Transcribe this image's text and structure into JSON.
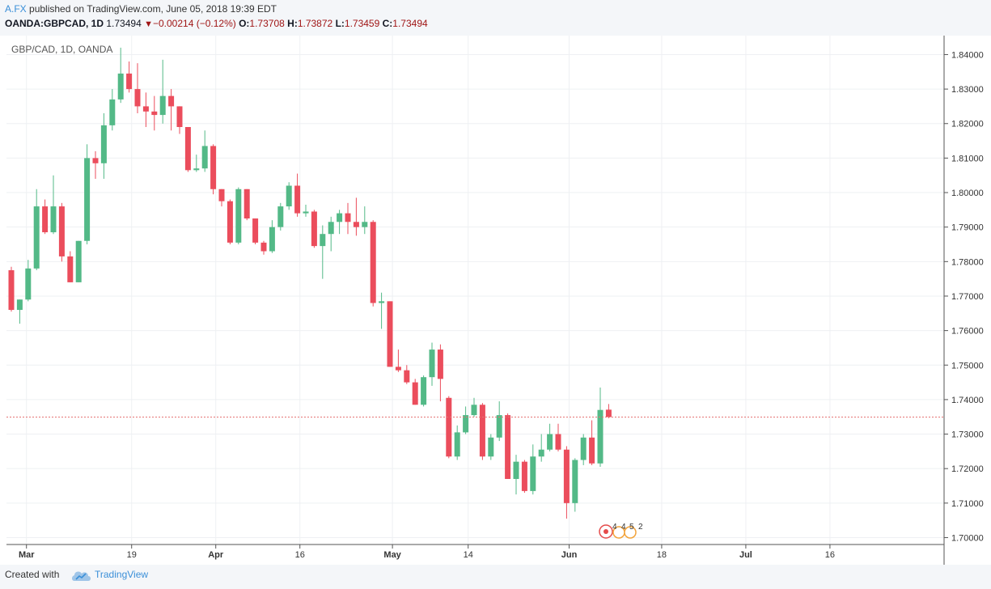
{
  "header": {
    "author": "A.FX",
    "published_text": "published on TradingView.com, June 05, 2018 19:39 EDT",
    "symbol": "OANDA:GBPCAD, 1D",
    "last": "1.73494",
    "change": "−0.00214 (−0.12%)",
    "o_label": "O:",
    "o_value": "1.73708",
    "h_label": "H:",
    "h_value": "1.73872",
    "l_label": "L:",
    "l_value": "1.73459",
    "c_label": "C:",
    "c_value": "1.73494"
  },
  "legend": "GBP/CAD, 1D, OANDA",
  "footer": {
    "created_with": "Created with",
    "brand": "TradingView"
  },
  "colors": {
    "up": "#53b987",
    "down": "#eb4d5c",
    "grid": "#eef0f3",
    "price_line": "#e57373",
    "axis": "#555555"
  },
  "events": {
    "labels": [
      "4",
      "4",
      "5",
      "2"
    ]
  },
  "chart_data": {
    "type": "candlestick",
    "title": "GBP/CAD, 1D, OANDA",
    "current_price": 1.73494,
    "ylim": [
      1.698,
      1.8455
    ],
    "y_ticks": [
      "1.84000",
      "1.83000",
      "1.82000",
      "1.81000",
      "1.80000",
      "1.79000",
      "1.78000",
      "1.77000",
      "1.76000",
      "1.75000",
      "1.74000",
      "1.73000",
      "1.72000",
      "1.71000",
      "1.70000"
    ],
    "x_ticks": [
      "Mar",
      "19",
      "Apr",
      "16",
      "May",
      "14",
      "Jun",
      "18",
      "Jul",
      "16"
    ],
    "x_tick_bars": [
      1.8,
      14.3,
      24.3,
      34.3,
      45.3,
      54.3,
      66.3,
      77.3,
      87.3,
      97.3
    ],
    "candles": [
      {
        "o": 1.7775,
        "h": 1.7785,
        "l": 1.7655,
        "c": 1.766
      },
      {
        "o": 1.766,
        "h": 1.769,
        "l": 1.762,
        "c": 1.769
      },
      {
        "o": 1.769,
        "h": 1.7805,
        "l": 1.7685,
        "c": 1.778
      },
      {
        "o": 1.778,
        "h": 1.801,
        "l": 1.7775,
        "c": 1.796
      },
      {
        "o": 1.796,
        "h": 1.798,
        "l": 1.788,
        "c": 1.7885
      },
      {
        "o": 1.7885,
        "h": 1.805,
        "l": 1.788,
        "c": 1.796
      },
      {
        "o": 1.796,
        "h": 1.797,
        "l": 1.78,
        "c": 1.7815
      },
      {
        "o": 1.7815,
        "h": 1.783,
        "l": 1.774,
        "c": 1.774
      },
      {
        "o": 1.774,
        "h": 1.786,
        "l": 1.774,
        "c": 1.786
      },
      {
        "o": 1.786,
        "h": 1.814,
        "l": 1.785,
        "c": 1.81
      },
      {
        "o": 1.81,
        "h": 1.812,
        "l": 1.804,
        "c": 1.8085
      },
      {
        "o": 1.8085,
        "h": 1.823,
        "l": 1.804,
        "c": 1.8195
      },
      {
        "o": 1.8195,
        "h": 1.83,
        "l": 1.818,
        "c": 1.827
      },
      {
        "o": 1.827,
        "h": 1.842,
        "l": 1.826,
        "c": 1.8345
      },
      {
        "o": 1.8345,
        "h": 1.838,
        "l": 1.829,
        "c": 1.83
      },
      {
        "o": 1.83,
        "h": 1.8375,
        "l": 1.823,
        "c": 1.825
      },
      {
        "o": 1.825,
        "h": 1.829,
        "l": 1.819,
        "c": 1.8235
      },
      {
        "o": 1.8235,
        "h": 1.828,
        "l": 1.818,
        "c": 1.8225
      },
      {
        "o": 1.8225,
        "h": 1.8385,
        "l": 1.82,
        "c": 1.828
      },
      {
        "o": 1.828,
        "h": 1.83,
        "l": 1.818,
        "c": 1.825
      },
      {
        "o": 1.825,
        "h": 1.825,
        "l": 1.817,
        "c": 1.819
      },
      {
        "o": 1.819,
        "h": 1.819,
        "l": 1.806,
        "c": 1.8065
      },
      {
        "o": 1.8065,
        "h": 1.811,
        "l": 1.806,
        "c": 1.807
      },
      {
        "o": 1.807,
        "h": 1.818,
        "l": 1.806,
        "c": 1.8135
      },
      {
        "o": 1.8135,
        "h": 1.814,
        "l": 1.7995,
        "c": 1.801
      },
      {
        "o": 1.801,
        "h": 1.801,
        "l": 1.796,
        "c": 1.7975
      },
      {
        "o": 1.7975,
        "h": 1.798,
        "l": 1.785,
        "c": 1.7855
      },
      {
        "o": 1.7855,
        "h": 1.8015,
        "l": 1.785,
        "c": 1.801
      },
      {
        "o": 1.801,
        "h": 1.801,
        "l": 1.792,
        "c": 1.7925
      },
      {
        "o": 1.7925,
        "h": 1.7925,
        "l": 1.785,
        "c": 1.7855
      },
      {
        "o": 1.7855,
        "h": 1.786,
        "l": 1.782,
        "c": 1.783
      },
      {
        "o": 1.783,
        "h": 1.792,
        "l": 1.7825,
        "c": 1.79
      },
      {
        "o": 1.79,
        "h": 1.797,
        "l": 1.789,
        "c": 1.796
      },
      {
        "o": 1.796,
        "h": 1.803,
        "l": 1.795,
        "c": 1.802
      },
      {
        "o": 1.802,
        "h": 1.8055,
        "l": 1.793,
        "c": 1.794
      },
      {
        "o": 1.794,
        "h": 1.7965,
        "l": 1.793,
        "c": 1.7945
      },
      {
        "o": 1.7945,
        "h": 1.795,
        "l": 1.784,
        "c": 1.7845
      },
      {
        "o": 1.7845,
        "h": 1.7905,
        "l": 1.775,
        "c": 1.788
      },
      {
        "o": 1.788,
        "h": 1.793,
        "l": 1.783,
        "c": 1.7915
      },
      {
        "o": 1.7915,
        "h": 1.795,
        "l": 1.788,
        "c": 1.794
      },
      {
        "o": 1.794,
        "h": 1.797,
        "l": 1.788,
        "c": 1.7915
      },
      {
        "o": 1.7915,
        "h": 1.7985,
        "l": 1.7875,
        "c": 1.79
      },
      {
        "o": 1.79,
        "h": 1.796,
        "l": 1.788,
        "c": 1.7915
      },
      {
        "o": 1.7915,
        "h": 1.792,
        "l": 1.767,
        "c": 1.768
      },
      {
        "o": 1.768,
        "h": 1.771,
        "l": 1.7605,
        "c": 1.7685
      },
      {
        "o": 1.7685,
        "h": 1.7685,
        "l": 1.7495,
        "c": 1.7495
      },
      {
        "o": 1.7495,
        "h": 1.7545,
        "l": 1.748,
        "c": 1.7485
      },
      {
        "o": 1.7485,
        "h": 1.75,
        "l": 1.7445,
        "c": 1.745
      },
      {
        "o": 1.745,
        "h": 1.746,
        "l": 1.7385,
        "c": 1.7385
      },
      {
        "o": 1.7385,
        "h": 1.747,
        "l": 1.738,
        "c": 1.7465
      },
      {
        "o": 1.7465,
        "h": 1.7565,
        "l": 1.744,
        "c": 1.7545
      },
      {
        "o": 1.7545,
        "h": 1.756,
        "l": 1.7395,
        "c": 1.746
      },
      {
        "o": 1.7405,
        "h": 1.741,
        "l": 1.723,
        "c": 1.7235
      },
      {
        "o": 1.7235,
        "h": 1.7325,
        "l": 1.7225,
        "c": 1.7305
      },
      {
        "o": 1.7305,
        "h": 1.738,
        "l": 1.73,
        "c": 1.7355
      },
      {
        "o": 1.7355,
        "h": 1.7405,
        "l": 1.735,
        "c": 1.7385
      },
      {
        "o": 1.7385,
        "h": 1.739,
        "l": 1.7225,
        "c": 1.7235
      },
      {
        "o": 1.7235,
        "h": 1.73,
        "l": 1.7225,
        "c": 1.729
      },
      {
        "o": 1.729,
        "h": 1.7395,
        "l": 1.728,
        "c": 1.7355
      },
      {
        "o": 1.7355,
        "h": 1.736,
        "l": 1.717,
        "c": 1.717
      },
      {
        "o": 1.717,
        "h": 1.724,
        "l": 1.7125,
        "c": 1.722
      },
      {
        "o": 1.722,
        "h": 1.7225,
        "l": 1.713,
        "c": 1.7135
      },
      {
        "o": 1.7135,
        "h": 1.727,
        "l": 1.7125,
        "c": 1.7235
      },
      {
        "o": 1.7235,
        "h": 1.73,
        "l": 1.722,
        "c": 1.7255
      },
      {
        "o": 1.7255,
        "h": 1.733,
        "l": 1.725,
        "c": 1.73
      },
      {
        "o": 1.73,
        "h": 1.733,
        "l": 1.725,
        "c": 1.7255
      },
      {
        "o": 1.7255,
        "h": 1.7265,
        "l": 1.7055,
        "c": 1.71
      },
      {
        "o": 1.71,
        "h": 1.723,
        "l": 1.7075,
        "c": 1.7225
      },
      {
        "o": 1.7225,
        "h": 1.73,
        "l": 1.721,
        "c": 1.729
      },
      {
        "o": 1.729,
        "h": 1.734,
        "l": 1.721,
        "c": 1.7215
      },
      {
        "o": 1.7215,
        "h": 1.7435,
        "l": 1.7205,
        "c": 1.737
      },
      {
        "o": 1.73708,
        "h": 1.73872,
        "l": 1.73459,
        "c": 1.73494
      }
    ]
  }
}
